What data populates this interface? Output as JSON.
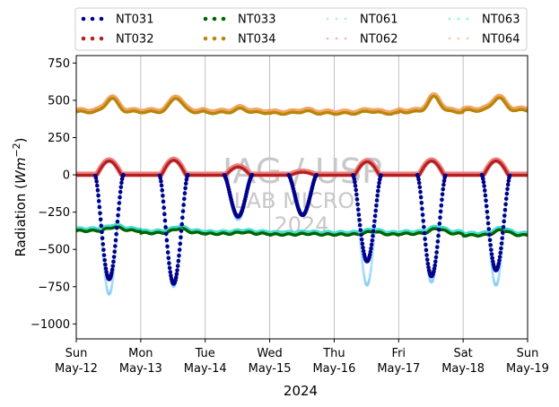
{
  "chart_data": {
    "type": "scatter",
    "xlabel": "2024",
    "ylabel": "Radiation (Wm⁻²)",
    "ylabel_main": "Radiation (",
    "ylabel_unit_base": "Wm",
    "ylabel_unit_exp": "−2",
    "ylabel_close": ")",
    "x_range": [
      "2024-05-12 00:00",
      "2024-05-19 00:00"
    ],
    "ylim": [
      -1100,
      800
    ],
    "y_ticks": [
      750,
      500,
      250,
      0,
      -250,
      -500,
      -750,
      -1000
    ],
    "y_tick_labels": [
      "750",
      "500",
      "250",
      "0",
      "−250",
      "−500",
      "−750",
      "−1000"
    ],
    "x_ticks": [
      {
        "day": "Sun",
        "date": "May-12"
      },
      {
        "day": "Mon",
        "date": "May-13"
      },
      {
        "day": "Tue",
        "date": "May-14"
      },
      {
        "day": "Wed",
        "date": "May-15"
      },
      {
        "day": "Thu",
        "date": "May-16"
      },
      {
        "day": "Fri",
        "date": "May-17"
      },
      {
        "day": "Sat",
        "date": "May-18"
      },
      {
        "day": "Sun",
        "date": "May-19"
      }
    ],
    "grid": "vertical",
    "legend_placement": "top (above plot, 4 columns)",
    "watermark": [
      "IAG / USP",
      "LAB MICRO",
      "2024"
    ],
    "series": [
      {
        "name": "NT031",
        "color": "#00008b",
        "marker": "dots"
      },
      {
        "name": "NT032",
        "color": "#b22222",
        "marker": "dots"
      },
      {
        "name": "NT033",
        "color": "#006400",
        "marker": "dots"
      },
      {
        "name": "NT034",
        "color": "#b8860b",
        "marker": "dots"
      },
      {
        "name": "NT061",
        "color": "#87cefa",
        "marker": "dots"
      },
      {
        "name": "NT062",
        "color": "#f08080",
        "marker": "dots"
      },
      {
        "name": "NT063",
        "color": "#40e0d0",
        "marker": "dots"
      },
      {
        "name": "NT064",
        "color": "#f4a460",
        "marker": "dots"
      }
    ],
    "profiles": {
      "shortwave_down_day_min": [
        -700,
        -730,
        -280,
        -270,
        -580,
        -680,
        -640
      ],
      "shortwave_down_day_min_NT061": [
        -800,
        -750,
        -300,
        -260,
        -740,
        -720,
        -740
      ],
      "net_up_day_peak": [
        95,
        100,
        55,
        20,
        90,
        95,
        95
      ],
      "longwave_down_mean": [
        420,
        420,
        415,
        410,
        410,
        420,
        430
      ],
      "longwave_down_day_peak": [
        510,
        515,
        440,
        425,
        425,
        520,
        515
      ],
      "longwave_up_mean": [
        -375,
        -390,
        -395,
        -400,
        -400,
        -395,
        -405
      ],
      "longwave_up_day_peak": [
        -350,
        -360,
        -385,
        -395,
        -380,
        -360,
        -370
      ]
    }
  }
}
